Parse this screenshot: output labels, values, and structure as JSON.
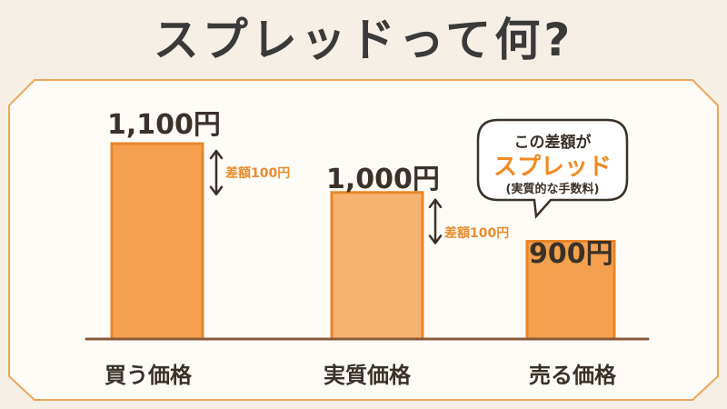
{
  "title": "スプレッドって何?",
  "colors": {
    "background": "#f6efe6",
    "card_background": "#fffcf8",
    "card_border": "#f0a45a",
    "bar_fill": "#f5a04e",
    "bar_fill_light": "#f8b26f",
    "bar_stroke": "#e8862a",
    "accent_orange": "#f08a24",
    "text_dark": "#3a3128"
  },
  "chart_data": {
    "type": "bar",
    "categories": [
      "買う価格",
      "実質価格",
      "売る価格"
    ],
    "values": [
      1100,
      1000,
      900
    ],
    "value_labels": [
      "1,100円",
      "1,000円",
      "900円"
    ],
    "ylim": [
      0,
      1200
    ],
    "grid": false,
    "annotations": [
      {
        "text": "差額100円",
        "from": 1100,
        "to": 1000
      },
      {
        "text": "差額100円",
        "from": 1000,
        "to": 900
      }
    ]
  },
  "callout": {
    "line1": "この差額が",
    "line2": "スプレッド",
    "line3": "(実質的な手数料)"
  }
}
